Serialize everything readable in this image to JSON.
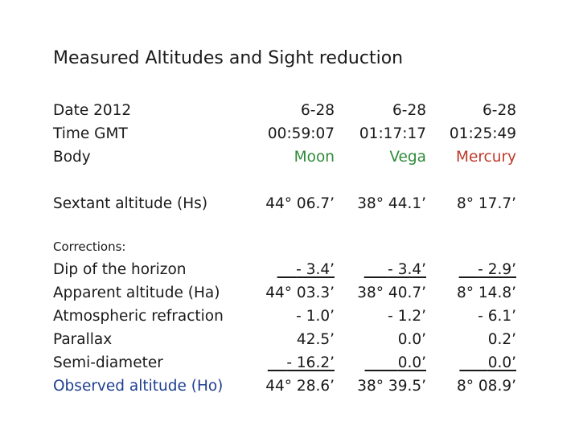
{
  "title": "Measured Altitudes and Sight reduction",
  "labels": {
    "date": "Date 2012",
    "time": "Time GMT",
    "body": "Body",
    "sextant": "Sextant altitude (Hs)",
    "corrections": "Corrections:",
    "dip": "Dip of the horizon",
    "apparent": "Apparent altitude (Ha)",
    "refraction": "Atmospheric refraction",
    "parallax": "Parallax",
    "semidiameter": "Semi-diameter",
    "observed": "Observed altitude (Ho)"
  },
  "columns": [
    {
      "date": "6-28",
      "time": "00:59:07",
      "body": "Moon",
      "hs": "44° 06.7’",
      "dip": "- 3.4’",
      "ha": "44° 03.3’",
      "refraction": "- 1.0’",
      "parallax": "42.5’",
      "semidiameter": "- 16.2’",
      "ho": "44° 28.6’"
    },
    {
      "date": "6-28",
      "time": "01:17:17",
      "body": "Vega",
      "hs": "38° 44.1’",
      "dip": "- 3.4’",
      "ha": "38° 40.7’",
      "refraction": "- 1.2’",
      "parallax": "0.0’",
      "semidiameter": "0.0’",
      "ho": "38° 39.5’"
    },
    {
      "date": "6-28",
      "time": "01:25:49",
      "body": "Mercury",
      "hs": "8° 17.7’",
      "dip": "- 2.9’",
      "ha": "8° 14.8’",
      "refraction": "- 6.1’",
      "parallax": "0.2’",
      "semidiameter": "0.0’",
      "ho": "8° 08.9’"
    }
  ],
  "colors": {
    "moon": "#2e8b3a",
    "vega": "#2e8b3a",
    "mercury": "#c0392b",
    "observed": "#1f3f8f"
  }
}
